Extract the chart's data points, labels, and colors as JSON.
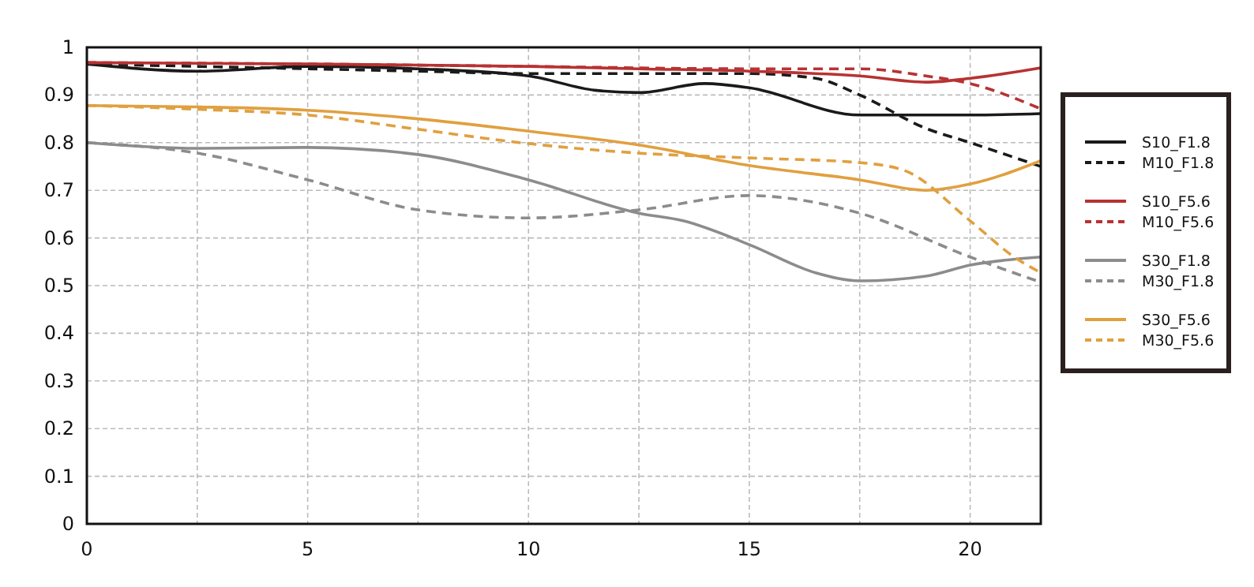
{
  "chart_data": {
    "type": "line",
    "xlim": [
      0,
      21.6
    ],
    "ylim": [
      0,
      1
    ],
    "xticks": [
      0,
      {
        "value": 2.5,
        "label": null
      },
      5,
      {
        "value": 7.5,
        "label": null
      },
      10,
      {
        "value": 12.5,
        "label": null
      },
      15,
      {
        "value": 17.5,
        "label": null
      },
      20
    ],
    "yticks": [
      0,
      0.1,
      0.2,
      0.3,
      0.4,
      0.5,
      0.6,
      0.7,
      0.8,
      0.9,
      1
    ],
    "grid": true,
    "legend": "right",
    "series": [
      {
        "name": "S10_F1.8",
        "color": "#1a1a1a",
        "line_style": "solid",
        "x": [
          0,
          2.5,
          5,
          7.5,
          10,
          11.5,
          12.5,
          14,
          15,
          17.5,
          20,
          21.6
        ],
        "values": [
          0.965,
          0.95,
          0.96,
          0.955,
          0.94,
          0.91,
          0.905,
          0.924,
          0.915,
          0.858,
          0.858,
          0.861
        ]
      },
      {
        "name": "M10_F1.8",
        "color": "#1a1a1a",
        "line_style": "dashed",
        "x": [
          0,
          2.5,
          5,
          7.5,
          10,
          12.5,
          15,
          16.5,
          17.5,
          19,
          20,
          21.6
        ],
        "values": [
          0.965,
          0.96,
          0.955,
          0.95,
          0.945,
          0.945,
          0.945,
          0.935,
          0.9,
          0.83,
          0.8,
          0.75
        ]
      },
      {
        "name": "S10_F5.6",
        "color": "#b83232",
        "line_style": "solid",
        "x": [
          0,
          5,
          10,
          12.5,
          15,
          17.5,
          19,
          20,
          21.6
        ],
        "values": [
          0.968,
          0.965,
          0.96,
          0.955,
          0.95,
          0.94,
          0.927,
          0.935,
          0.957
        ]
      },
      {
        "name": "M10_F5.6",
        "color": "#b83232",
        "line_style": "dashed",
        "x": [
          0,
          5,
          10,
          15,
          17.5,
          19,
          20,
          21.6
        ],
        "values": [
          0.968,
          0.965,
          0.96,
          0.955,
          0.955,
          0.94,
          0.924,
          0.871
        ]
      },
      {
        "name": "S30_F1.8",
        "color": "#8c8c8c",
        "line_style": "solid",
        "x": [
          0,
          2.5,
          5,
          7.5,
          10,
          12.5,
          13.5,
          15,
          16.5,
          17.5,
          19,
          20,
          21.6
        ],
        "values": [
          0.8,
          0.788,
          0.79,
          0.775,
          0.722,
          0.652,
          0.636,
          0.586,
          0.527,
          0.51,
          0.52,
          0.543,
          0.56
        ]
      },
      {
        "name": "M30_F1.8",
        "color": "#8c8c8c",
        "line_style": "dashed",
        "x": [
          0,
          2.5,
          5,
          7.5,
          10,
          12.5,
          15,
          16,
          17.5,
          20,
          21.6
        ],
        "values": [
          0.8,
          0.778,
          0.722,
          0.659,
          0.642,
          0.659,
          0.689,
          0.682,
          0.652,
          0.56,
          0.507
        ]
      },
      {
        "name": "S30_F5.6",
        "color": "#e0a040",
        "line_style": "solid",
        "x": [
          0,
          2.5,
          5,
          7.5,
          10,
          12.5,
          15,
          17.5,
          19,
          20,
          21.6
        ],
        "values": [
          0.878,
          0.875,
          0.868,
          0.85,
          0.824,
          0.795,
          0.752,
          0.722,
          0.7,
          0.713,
          0.762
        ]
      },
      {
        "name": "M30_F5.6",
        "color": "#e0a040",
        "line_style": "dashed",
        "x": [
          0,
          2.5,
          5,
          7.5,
          10,
          12.5,
          15,
          17.5,
          18.5,
          20,
          21,
          21.6
        ],
        "values": [
          0.878,
          0.87,
          0.858,
          0.828,
          0.798,
          0.778,
          0.768,
          0.758,
          0.742,
          0.636,
          0.56,
          0.527
        ]
      }
    ]
  }
}
